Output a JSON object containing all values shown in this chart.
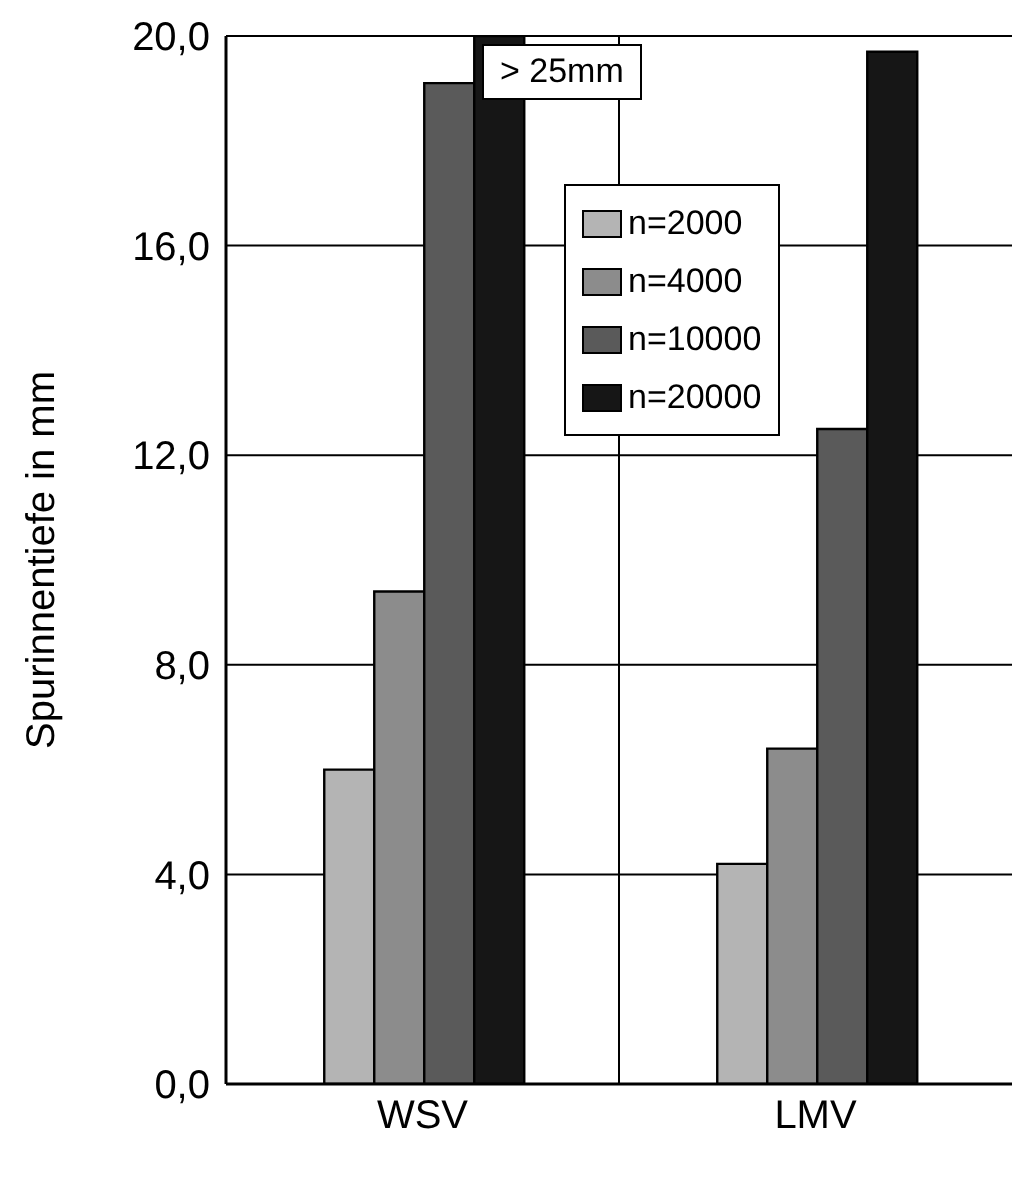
{
  "chart_data": {
    "type": "bar",
    "ylabel": "Spurinnentiefe in mm",
    "categories": [
      "WSV",
      "LMV"
    ],
    "series": [
      {
        "name": "n=2000",
        "color": "#b4b4b4",
        "values": [
          6.0,
          4.2
        ]
      },
      {
        "name": "n=4000",
        "color": "#8c8c8c",
        "values": [
          9.4,
          6.4
        ]
      },
      {
        "name": "n=10000",
        "color": "#5a5a5a",
        "values": [
          19.1,
          12.5
        ]
      },
      {
        "name": "n=20000",
        "color": "#161616",
        "values": [
          20.0,
          19.7
        ]
      }
    ],
    "ylim": [
      0,
      20
    ],
    "yticks": [
      {
        "value": 0,
        "label": "0,0"
      },
      {
        "value": 4,
        "label": "4,0"
      },
      {
        "value": 8,
        "label": "8,0"
      },
      {
        "value": 12,
        "label": "12,0"
      },
      {
        "value": 16,
        "label": "16,0"
      },
      {
        "value": 20,
        "label": "20,0"
      }
    ],
    "grid": true,
    "legend": "top right",
    "annotations": [
      "> 25mm"
    ]
  }
}
